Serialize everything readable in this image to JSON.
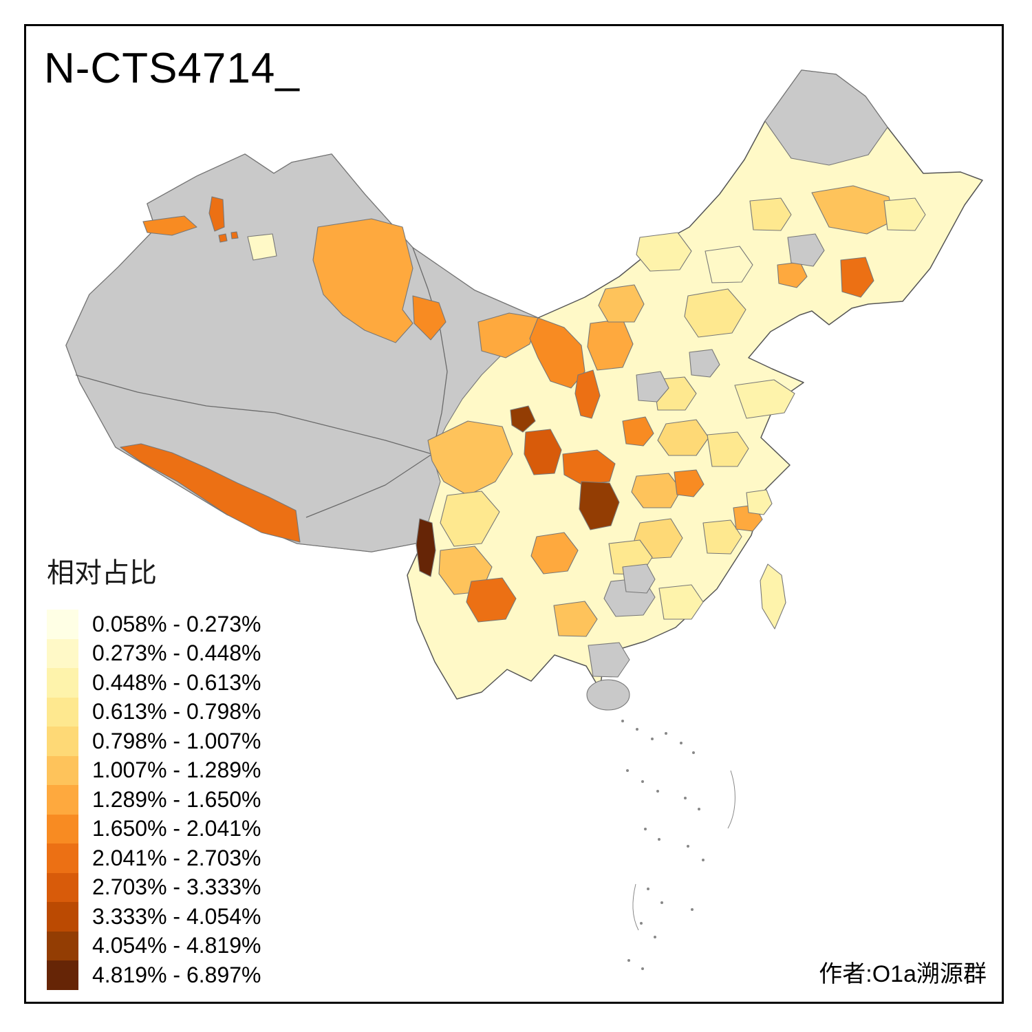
{
  "title": "N-CTS4714_",
  "legend": {
    "title": "相对占比",
    "items": [
      {
        "label": "0.058% - 0.273%",
        "color": "#FFFFE5"
      },
      {
        "label": "0.273% - 0.448%",
        "color": "#FFF9C7"
      },
      {
        "label": "0.448% - 0.613%",
        "color": "#FEF3AB"
      },
      {
        "label": "0.613% - 0.798%",
        "color": "#FEE88F"
      },
      {
        "label": "0.798% - 1.007%",
        "color": "#FED976"
      },
      {
        "label": "1.007% - 1.289%",
        "color": "#FEC35B"
      },
      {
        "label": "1.289% - 1.650%",
        "color": "#FEA93E"
      },
      {
        "label": "1.650% - 2.041%",
        "color": "#F88B22"
      },
      {
        "label": "2.041% - 2.703%",
        "color": "#EC7014"
      },
      {
        "label": "2.703% - 3.333%",
        "color": "#D85B0A"
      },
      {
        "label": "3.333% - 4.054%",
        "color": "#BB4A02"
      },
      {
        "label": "4.054% - 4.819%",
        "color": "#933D03"
      },
      {
        "label": "4.819% - 6.897%",
        "color": "#662506"
      }
    ],
    "no_data_color": "#C9C9C9"
  },
  "attribution": "作者:O1a溯源群",
  "map": {
    "description": "choropleth map of China prefectures showing relative share of N-CTS4714"
  }
}
